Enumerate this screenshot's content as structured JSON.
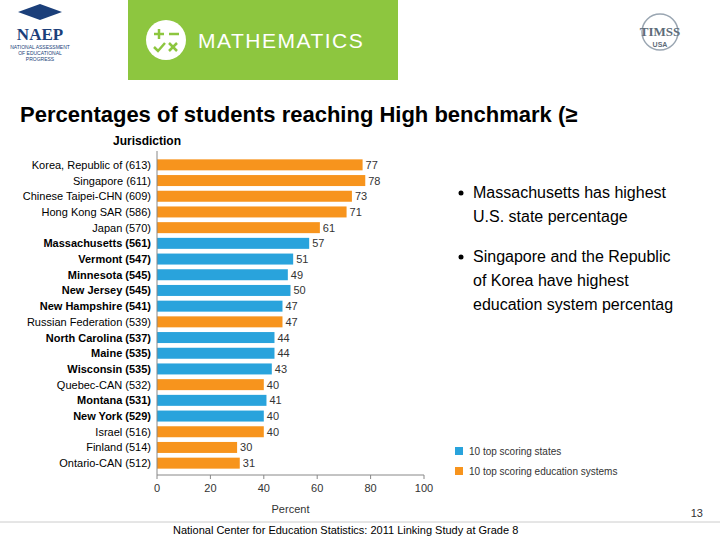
{
  "header": {
    "logo_left": "NAEP",
    "logo_left_sub": [
      "NATIONAL ASSESSMENT",
      "OF EDUCATIONAL",
      "PROGRESS"
    ],
    "banner": "MATHEMATICS",
    "logo_right": "TIMSS",
    "logo_right_sub": "USA"
  },
  "title": "Percentages of students reaching High benchmark (≥",
  "bullets": [
    [
      "Massachusetts has highest",
      "U.S. state percentage"
    ],
    [
      "Singapore and the Republic",
      "of Korea have highest",
      "education system percentag"
    ]
  ],
  "page_number": "13",
  "footer": "National Center for Education Statistics: 2011 Linking Study at Grade 8",
  "chart_data": {
    "type": "bar",
    "orientation": "horizontal",
    "x_label": "Percent",
    "y_label": "Jurisdiction",
    "categories": [
      "Korea, Republic of (613)",
      "Singapore (611)",
      "Chinese Taipei-CHN (609)",
      "Hong Kong SAR (586)",
      "Japan (570)",
      "Massachusetts (561)",
      "Vermont (547)",
      "Minnesota (545)",
      "New Jersey (545)",
      "New Hampshire (541)",
      "Russian Federation (539)",
      "North Carolina (537)",
      "Maine (535)",
      "Wisconsin (535)",
      "Quebec-CAN (532)",
      "Montana (531)",
      "New York (529)",
      "Israel (516)",
      "Finland (514)",
      "Ontario-CAN (512)"
    ],
    "series": [
      {
        "name": "10 top scoring states",
        "color": "#29a3dc",
        "values": [
          null,
          null,
          null,
          null,
          null,
          57,
          51,
          49,
          50,
          47,
          null,
          44,
          44,
          43,
          null,
          41,
          40,
          null,
          null,
          null
        ]
      },
      {
        "name": "10 top scoring education systems",
        "color": "#f7941d",
        "values": [
          77,
          78,
          73,
          71,
          61,
          null,
          null,
          null,
          null,
          null,
          47,
          null,
          null,
          null,
          40,
          null,
          null,
          40,
          30,
          31
        ]
      }
    ],
    "xlim": [
      0,
      100
    ],
    "xticks": [
      0,
      20,
      40,
      60,
      80,
      100
    ],
    "grid": false,
    "data_labels": true,
    "legend": "bottom-right"
  }
}
